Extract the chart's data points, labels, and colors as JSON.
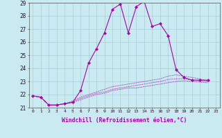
{
  "title": "",
  "xlabel": "Windchill (Refroidissement éolien,°C)",
  "ylabel": "",
  "background_color": "#c8eaf0",
  "line_color": "#aa00aa",
  "xlim": [
    -0.5,
    23.5
  ],
  "ylim": [
    21,
    29
  ],
  "yticks": [
    21,
    22,
    23,
    24,
    25,
    26,
    27,
    28,
    29
  ],
  "xticks": [
    0,
    1,
    2,
    3,
    4,
    5,
    6,
    7,
    8,
    9,
    10,
    11,
    12,
    13,
    14,
    15,
    16,
    17,
    18,
    19,
    20,
    21,
    22,
    23
  ],
  "series": [
    [
      21.9,
      21.8,
      21.2,
      21.2,
      21.3,
      21.4,
      22.3,
      24.4,
      25.5,
      26.7,
      28.5,
      28.9,
      26.7,
      28.7,
      29.1,
      27.2,
      27.4,
      26.5,
      23.9,
      23.3,
      23.1,
      23.1,
      23.1
    ],
    [
      21.9,
      21.8,
      21.2,
      21.2,
      21.3,
      21.5,
      21.8,
      22.0,
      22.2,
      22.4,
      22.6,
      22.7,
      22.8,
      22.9,
      23.0,
      23.1,
      23.2,
      23.4,
      23.5,
      23.4,
      23.3,
      23.2,
      23.0
    ],
    [
      21.9,
      21.8,
      21.2,
      21.2,
      21.3,
      21.45,
      21.7,
      21.9,
      22.1,
      22.2,
      22.4,
      22.5,
      22.6,
      22.7,
      22.8,
      22.9,
      23.0,
      23.15,
      23.2,
      23.2,
      23.1,
      23.05,
      23.0
    ],
    [
      21.9,
      21.8,
      21.2,
      21.2,
      21.3,
      21.4,
      21.6,
      21.8,
      22.0,
      22.1,
      22.3,
      22.4,
      22.5,
      22.5,
      22.6,
      22.7,
      22.8,
      22.9,
      23.0,
      23.05,
      23.0,
      22.95,
      22.9
    ]
  ]
}
